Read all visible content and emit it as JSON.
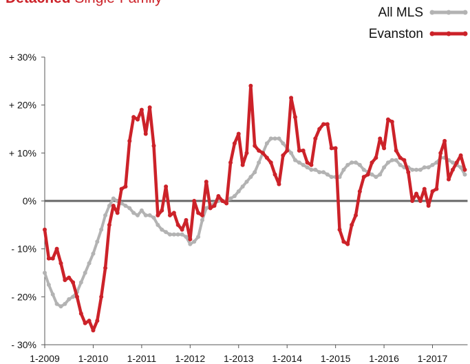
{
  "chart_data": {
    "type": "line",
    "title": {
      "bold": "Detached",
      "rest": "Single-Family"
    },
    "categories": [
      "1-2009",
      null,
      null,
      null,
      null,
      null,
      null,
      null,
      null,
      null,
      null,
      null,
      "1-2010",
      null,
      null,
      null,
      null,
      null,
      null,
      null,
      null,
      null,
      null,
      null,
      "1-2011",
      null,
      null,
      null,
      null,
      null,
      null,
      null,
      null,
      null,
      null,
      null,
      "1-2012",
      null,
      null,
      null,
      null,
      null,
      null,
      null,
      null,
      null,
      null,
      null,
      "1-2013",
      null,
      null,
      null,
      null,
      null,
      null,
      null,
      null,
      null,
      null,
      null,
      "1-2014",
      null,
      null,
      null,
      null,
      null,
      null,
      null,
      null,
      null,
      null,
      null,
      "1-2015",
      null,
      null,
      null,
      null,
      null,
      null,
      null,
      null,
      null,
      null,
      null,
      "1-2016",
      null,
      null,
      null,
      null,
      null,
      null,
      null,
      null,
      null,
      null,
      null,
      "1-2017",
      null,
      null,
      null,
      null,
      null,
      null,
      null,
      null
    ],
    "series": [
      {
        "name": "All MLS",
        "color": "#b3b3b3",
        "values": [
          -15,
          -17.5,
          -19.5,
          -21.5,
          -22,
          -21.5,
          -20.5,
          -20,
          -19,
          -17,
          -15,
          -13,
          -11,
          -8.5,
          -6,
          -3,
          -1,
          0.5,
          0,
          -0.5,
          -1,
          -1.5,
          -2.5,
          -3,
          -2,
          -3,
          -3,
          -3.5,
          -5,
          -6,
          -6.5,
          -7,
          -7,
          -7,
          -7,
          -7.5,
          -9,
          -8.5,
          -7.5,
          -4,
          -1.5,
          -1,
          -0.5,
          0,
          0,
          0,
          0.5,
          1,
          2,
          3,
          4,
          5,
          6,
          8,
          10,
          12,
          13,
          13,
          13,
          12,
          11,
          10,
          8.5,
          8,
          7.5,
          7,
          6.5,
          6.5,
          6,
          6,
          5.5,
          5,
          5,
          5,
          6.5,
          7.5,
          8,
          8,
          7.5,
          6.5,
          6,
          5.5,
          5,
          5.5,
          7,
          8,
          8.5,
          8.5,
          7.5,
          7,
          7,
          6.5,
          6.5,
          6.5,
          7,
          7,
          7.5,
          8,
          9,
          9,
          8.5,
          8,
          7.5,
          7,
          5.5
        ]
      },
      {
        "name": "Evanston",
        "color": "#cc2229",
        "values": [
          -6,
          -12,
          -12,
          -10,
          -13,
          -16.5,
          -16,
          -17,
          -20,
          -23.5,
          -25.5,
          -25,
          -27,
          -25,
          -20,
          -14,
          -5,
          -1,
          -2.5,
          2.5,
          3,
          12.5,
          17.5,
          17,
          19,
          14,
          19.5,
          11.5,
          -3,
          -2,
          3,
          -3,
          -2.5,
          -5,
          -6,
          -4,
          -8,
          0,
          -2.5,
          -3,
          4,
          -1.5,
          -1,
          1,
          0,
          -0.5,
          8,
          12,
          14,
          7.5,
          10,
          24,
          11.5,
          10.5,
          10,
          9,
          8,
          5.5,
          3.5,
          9.5,
          10.5,
          21.5,
          17.5,
          10.5,
          10.5,
          8,
          7.5,
          13,
          15,
          16,
          16,
          11,
          11,
          -6,
          -8.5,
          -9,
          -5,
          -3,
          2,
          5,
          5.5,
          8,
          9,
          13,
          11,
          17,
          16.5,
          10.5,
          9,
          8.5,
          6,
          0,
          1.5,
          0,
          2.5,
          -1,
          2,
          2.5,
          10,
          12.5,
          4.5,
          6.5,
          8,
          9.5,
          6.5
        ]
      }
    ],
    "ylim": [
      -30,
      30
    ],
    "yticks": [
      {
        "value": -30,
        "label": "- 30%"
      },
      {
        "value": -20,
        "label": "- 20%"
      },
      {
        "value": -10,
        "label": "- 10%"
      },
      {
        "value": 0,
        "label": "0%"
      },
      {
        "value": 10,
        "label": "+ 10%"
      },
      {
        "value": 20,
        "label": "+ 20%"
      },
      {
        "value": 30,
        "label": "+ 30%"
      }
    ],
    "legend": "top-right"
  }
}
